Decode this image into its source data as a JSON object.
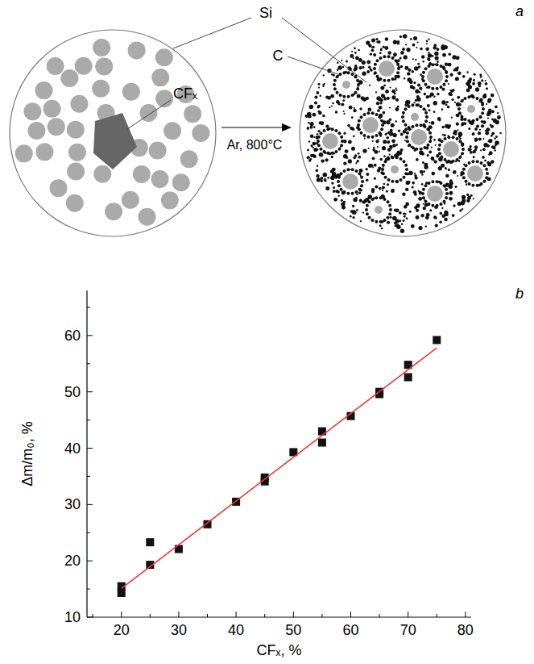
{
  "diagram": {
    "panel_label": "a",
    "si_label": "Si",
    "cfx_label": "CFₓ",
    "c_label": "C",
    "process": "Ar, 800°C"
  },
  "chart_data": {
    "type": "scatter",
    "panel_label": "b",
    "x_label": "CFₓ, %",
    "y_label": "Δm/m₀, %",
    "xlim": [
      14,
      81
    ],
    "ylim": [
      10,
      68
    ],
    "xticks": [
      20,
      30,
      40,
      50,
      60,
      70,
      80
    ],
    "yticks": [
      10,
      20,
      30,
      40,
      50,
      60
    ],
    "grid": false,
    "series": [
      {
        "type": "scatter",
        "marker": "square",
        "color": "#111111",
        "x": [
          20,
          20,
          25,
          25,
          30,
          35,
          40,
          45,
          45,
          50,
          55,
          55,
          60,
          65,
          65,
          70,
          70,
          75
        ],
        "values": [
          15.5,
          14.3,
          23.3,
          19.3,
          22.1,
          26.5,
          30.5,
          34.8,
          34.1,
          39.3,
          43.0,
          41.0,
          45.7,
          50.0,
          49.6,
          54.8,
          52.6,
          59.2
        ]
      },
      {
        "type": "line",
        "line_style": "solid",
        "color": "#e8382e",
        "x": [
          20,
          75
        ],
        "values": [
          15.1,
          57.8
        ]
      }
    ]
  }
}
